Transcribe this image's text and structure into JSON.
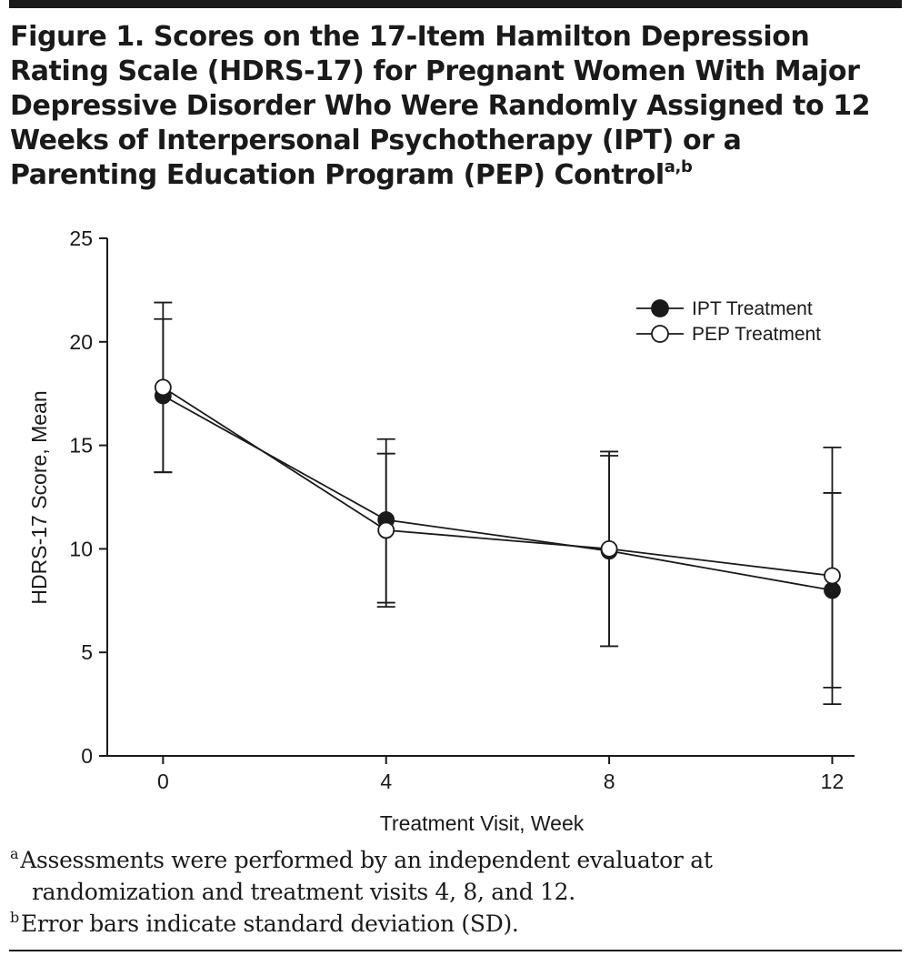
{
  "figure": {
    "title": "Figure 1. Scores on the 17-Item Hamilton Depression Rating Scale (HDRS-17) for Pregnant Women With Major Depressive Disorder Who Were Randomly Assigned to 12 Weeks of Interpersonal Psychotherapy (IPT) or a Parenting Education Program (PEP) Control",
    "title_superscript": "a,b"
  },
  "chart_data": {
    "type": "line",
    "title": "",
    "xlabel": "Treatment Visit, Week",
    "ylabel": "HDRS-17 Score, Mean",
    "x": [
      0,
      4,
      8,
      12
    ],
    "x_tick_labels": [
      "0",
      "4",
      "8",
      "12"
    ],
    "xlim": [
      -1,
      12.4
    ],
    "ylim": [
      0,
      25
    ],
    "y_ticks": [
      0,
      5,
      10,
      15,
      20,
      25
    ],
    "y_tick_labels": [
      "0",
      "5",
      "10",
      "15",
      "20",
      "25"
    ],
    "grid": false,
    "legend_position": "top-right",
    "series": [
      {
        "name": "IPT Treatment",
        "marker": "filled-circle",
        "values": [
          17.4,
          11.4,
          9.9,
          8.0
        ],
        "error_low": [
          13.7,
          7.2,
          5.3,
          2.5
        ],
        "error_high": [
          21.1,
          14.6,
          14.5,
          12.7
        ]
      },
      {
        "name": "PEP Treatment",
        "marker": "open-circle",
        "values": [
          17.8,
          10.9,
          10.0,
          8.7
        ],
        "error_low": [
          13.7,
          7.4,
          5.3,
          3.3
        ],
        "error_high": [
          21.9,
          15.3,
          14.7,
          14.9
        ]
      }
    ]
  },
  "footnotes": [
    {
      "marker": "a",
      "lines": [
        "Assessments were performed by an independent evaluator at",
        "randomization and treatment visits 4, 8, and 12."
      ]
    },
    {
      "marker": "b",
      "lines": [
        "Error bars indicate standard deviation (SD)."
      ]
    }
  ],
  "colors": {
    "ink": "#1a1a1a",
    "background": "#ffffff"
  }
}
